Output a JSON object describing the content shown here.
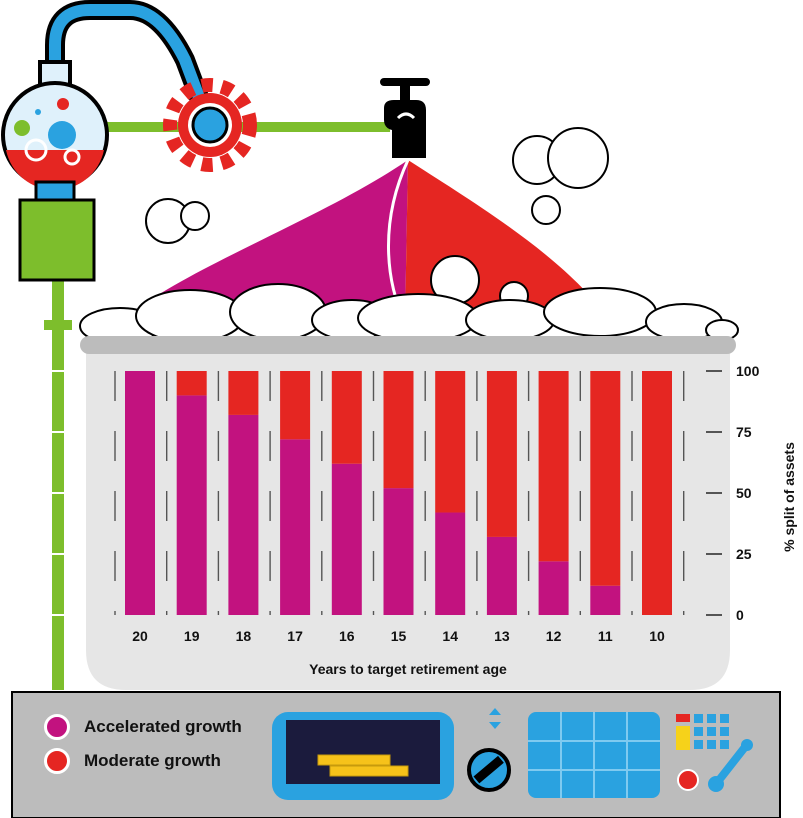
{
  "colors": {
    "accelerated": "#c2127f",
    "moderate": "#e52622",
    "machine_green": "#7dbe2c",
    "machine_blue": "#2aa2e0",
    "panel_grey": "#bcbcbc",
    "tub_grey": "#e6e6e6"
  },
  "legend": {
    "items": [
      {
        "label": "Accelerated growth",
        "color": "#c2127f"
      },
      {
        "label": "Moderate growth",
        "color": "#e52622"
      }
    ]
  },
  "icons": [
    "flask-icon",
    "gear-icon",
    "tap-icon",
    "coins-icon",
    "dial-icon",
    "bubble-icon"
  ],
  "chart_data": {
    "type": "bar",
    "stacked": true,
    "categories": [
      "20",
      "19",
      "18",
      "17",
      "16",
      "15",
      "14",
      "13",
      "12",
      "11",
      "10"
    ],
    "series": [
      {
        "name": "Accelerated growth",
        "values": [
          100,
          90,
          82,
          72,
          62,
          52,
          42,
          32,
          22,
          12,
          0
        ]
      },
      {
        "name": "Moderate growth",
        "values": [
          0,
          10,
          18,
          28,
          38,
          48,
          58,
          68,
          78,
          88,
          100
        ]
      }
    ],
    "xlabel": "Years to target retirement age",
    "ylabel": "% split of assets",
    "yticks": [
      100,
      75,
      50,
      25,
      0
    ],
    "ylim": [
      0,
      100
    ],
    "grid": false,
    "legend_position": "bottom-left"
  }
}
